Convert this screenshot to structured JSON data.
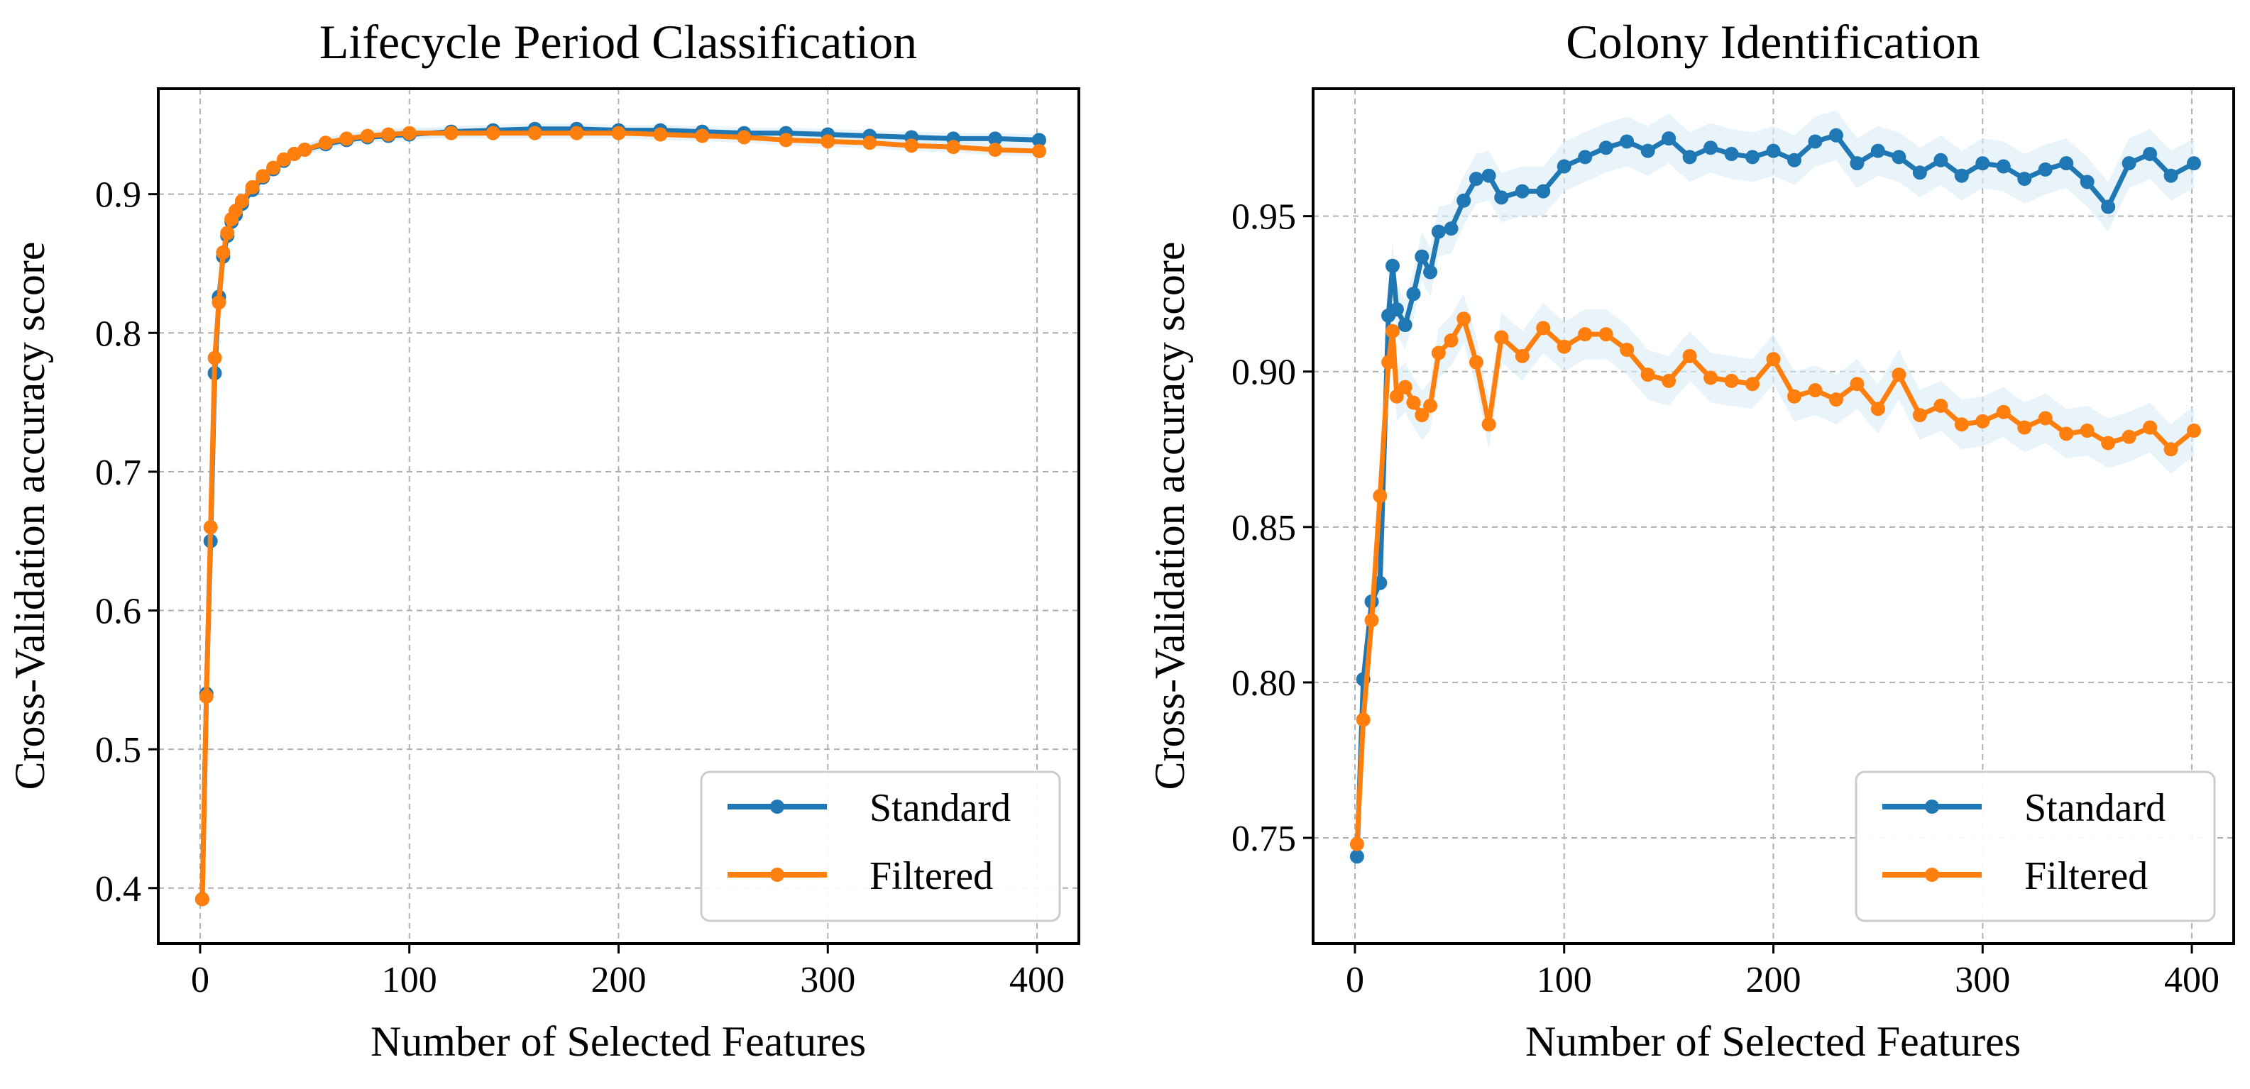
{
  "figure": {
    "colors": {
      "standard": "#1f77b4",
      "filtered": "#ff7f0e",
      "grid": "#b0b0b0",
      "band": "#d9edf7"
    }
  },
  "chart_data": [
    {
      "type": "line",
      "title": "Lifecycle Period Classification",
      "xlabel": "Number of Selected Features",
      "ylabel": "Cross-Validation accuracy score",
      "xlim": [
        -20,
        420
      ],
      "ylim": [
        0.36,
        0.976
      ],
      "xticks": [
        0,
        100,
        200,
        300,
        400
      ],
      "xtick_labels": [
        "0",
        "100",
        "200",
        "300",
        "400"
      ],
      "yticks": [
        0.4,
        0.5,
        0.6,
        0.7,
        0.8,
        0.9
      ],
      "ytick_labels": [
        "0.4",
        "0.5",
        "0.6",
        "0.7",
        "0.8",
        "0.9"
      ],
      "grid": true,
      "legend": {
        "position": "bottom-right",
        "entries": [
          "Standard",
          "Filtered"
        ]
      },
      "series": [
        {
          "name": "Standard",
          "color": "#1f77b4",
          "x": [
            1,
            3,
            5,
            7,
            9,
            11,
            13,
            15,
            17,
            20,
            25,
            30,
            35,
            40,
            45,
            50,
            60,
            70,
            80,
            90,
            100,
            120,
            140,
            160,
            180,
            200,
            220,
            240,
            260,
            280,
            300,
            320,
            340,
            360,
            380,
            401
          ],
          "y": [
            0.392,
            0.54,
            0.65,
            0.771,
            0.826,
            0.855,
            0.87,
            0.88,
            0.885,
            0.893,
            0.903,
            0.912,
            0.918,
            0.924,
            0.929,
            0.932,
            0.936,
            0.939,
            0.941,
            0.942,
            0.943,
            0.945,
            0.946,
            0.947,
            0.947,
            0.946,
            0.946,
            0.945,
            0.944,
            0.944,
            0.943,
            0.942,
            0.941,
            0.94,
            0.94,
            0.939
          ]
        },
        {
          "name": "Filtered",
          "color": "#ff7f0e",
          "x": [
            1,
            3,
            5,
            7,
            9,
            11,
            13,
            15,
            17,
            20,
            25,
            30,
            35,
            40,
            45,
            50,
            60,
            70,
            80,
            90,
            100,
            120,
            140,
            160,
            180,
            200,
            220,
            240,
            260,
            280,
            300,
            320,
            340,
            360,
            380,
            401
          ],
          "y": [
            0.392,
            0.538,
            0.66,
            0.782,
            0.822,
            0.858,
            0.872,
            0.882,
            0.888,
            0.895,
            0.905,
            0.913,
            0.919,
            0.925,
            0.929,
            0.932,
            0.937,
            0.94,
            0.942,
            0.943,
            0.944,
            0.944,
            0.944,
            0.944,
            0.944,
            0.944,
            0.943,
            0.942,
            0.941,
            0.939,
            0.938,
            0.937,
            0.935,
            0.934,
            0.932,
            0.931
          ]
        }
      ]
    },
    {
      "type": "line",
      "title": "Colony Identification",
      "xlabel": "Number of Selected Features",
      "ylabel": "Cross-Validation accuracy score",
      "xlim": [
        -20,
        420
      ],
      "ylim": [
        0.716,
        0.991
      ],
      "xticks": [
        0,
        100,
        200,
        300,
        400
      ],
      "xtick_labels": [
        "0",
        "100",
        "200",
        "300",
        "400"
      ],
      "yticks": [
        0.75,
        0.8,
        0.85,
        0.9,
        0.95
      ],
      "ytick_labels": [
        "0.75",
        "0.80",
        "0.85",
        "0.90",
        "0.95"
      ],
      "grid": true,
      "legend": {
        "position": "bottom-right",
        "entries": [
          "Standard",
          "Filtered"
        ]
      },
      "series": [
        {
          "name": "Standard",
          "color": "#1f77b4",
          "x": [
            1,
            4,
            8,
            12,
            16,
            18,
            20,
            24,
            28,
            32,
            36,
            40,
            46,
            52,
            58,
            64,
            70,
            80,
            90,
            100,
            110,
            120,
            130,
            140,
            150,
            160,
            170,
            180,
            190,
            200,
            210,
            220,
            230,
            240,
            250,
            260,
            270,
            280,
            290,
            300,
            310,
            320,
            330,
            340,
            350,
            360,
            370,
            380,
            390,
            401
          ],
          "y": [
            0.744,
            0.801,
            0.826,
            0.832,
            0.918,
            0.934,
            0.92,
            0.915,
            0.925,
            0.937,
            0.932,
            0.945,
            0.946,
            0.955,
            0.962,
            0.963,
            0.956,
            0.958,
            0.958,
            0.966,
            0.969,
            0.972,
            0.974,
            0.971,
            0.975,
            0.969,
            0.972,
            0.97,
            0.969,
            0.971,
            0.968,
            0.974,
            0.976,
            0.967,
            0.971,
            0.969,
            0.964,
            0.968,
            0.963,
            0.967,
            0.966,
            0.962,
            0.965,
            0.967,
            0.961,
            0.953,
            0.967,
            0.97,
            0.963,
            0.967
          ]
        },
        {
          "name": "Filtered",
          "color": "#ff7f0e",
          "x": [
            1,
            4,
            8,
            12,
            16,
            18,
            20,
            24,
            28,
            32,
            36,
            40,
            46,
            52,
            58,
            64,
            70,
            80,
            90,
            100,
            110,
            120,
            130,
            140,
            150,
            160,
            170,
            180,
            190,
            200,
            210,
            220,
            230,
            240,
            250,
            260,
            270,
            280,
            290,
            300,
            310,
            320,
            330,
            340,
            350,
            360,
            370,
            380,
            390,
            401
          ],
          "y": [
            0.748,
            0.788,
            0.82,
            0.86,
            0.903,
            0.913,
            0.892,
            0.895,
            0.89,
            0.886,
            0.889,
            0.906,
            0.91,
            0.917,
            0.903,
            0.883,
            0.911,
            0.905,
            0.914,
            0.908,
            0.912,
            0.912,
            0.907,
            0.899,
            0.897,
            0.905,
            0.898,
            0.897,
            0.896,
            0.904,
            0.892,
            0.894,
            0.891,
            0.896,
            0.888,
            0.899,
            0.886,
            0.889,
            0.883,
            0.884,
            0.887,
            0.882,
            0.885,
            0.88,
            0.881,
            0.877,
            0.879,
            0.882,
            0.875,
            0.881
          ]
        }
      ]
    }
  ]
}
